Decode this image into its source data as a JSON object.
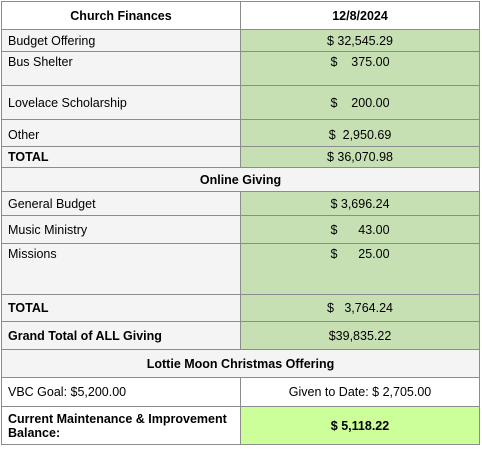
{
  "header": {
    "title": "Church Finances",
    "date": "12/8/2024"
  },
  "offerings": {
    "rows": [
      [
        "Budget Offering",
        "$ 32,545.29"
      ],
      [
        "Bus Shelter",
        "$    375.00"
      ],
      [
        "Lovelace Scholarship",
        "$    200.00"
      ],
      [
        "Other",
        "$  2,950.69"
      ]
    ],
    "total": [
      "TOTAL",
      "$ 36,070.98"
    ]
  },
  "online": {
    "title": "Online Giving",
    "rows": [
      [
        "General Budget",
        "$ 3,696.24"
      ],
      [
        "Music Ministry",
        "$      43.00"
      ],
      [
        "Missions",
        "$      25.00"
      ]
    ],
    "total": [
      "TOTAL",
      "$   3,764.24"
    ]
  },
  "grand_total": [
    "Grand Total of ALL Giving",
    "$39,835.22"
  ],
  "lottie_moon": {
    "title": "Lottie Moon Christmas Offering",
    "goal": "VBC Goal: $5,200.00",
    "given": "Given to Date: $ 2,705.00"
  },
  "balance": [
    "Current Maintenance & Improvement Balance:",
    "$ 5,118.22"
  ]
}
